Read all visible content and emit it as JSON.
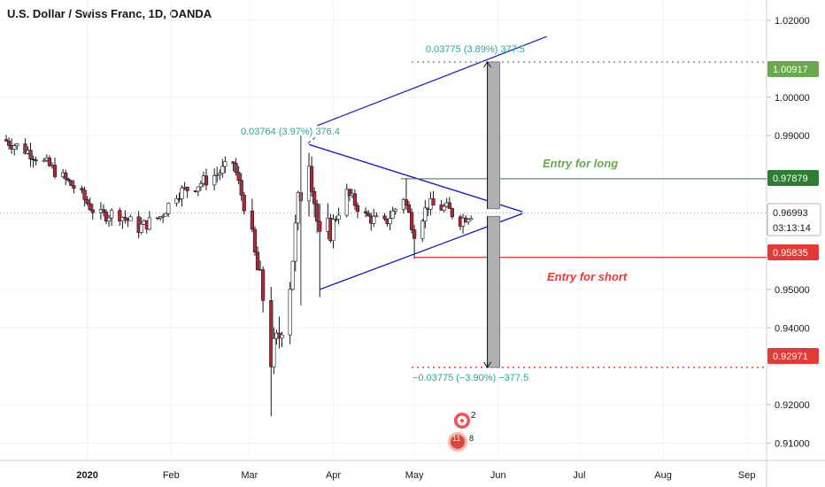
{
  "header": {
    "symbol": "U.S. Dollar / Swiss Franc, 1D, OANDA"
  },
  "colors": {
    "up": "#26a69a",
    "down": "#ef5350",
    "candle": "#131722",
    "bull_body": "#ffffff",
    "bear_body": "#b22833",
    "trendline": "#1c1cd8",
    "long_level": "#2e7d32",
    "short_level": "#e53935",
    "target_long": "#6aa84f",
    "measure_text": "#26a69a",
    "range_box": "#b0b0b0"
  },
  "chart_data": {
    "type": "candlestick",
    "x": [
      "2019-12-01",
      "2020-09-07"
    ],
    "x_ticks": [
      {
        "date": "2020-01-01",
        "label": "2020",
        "bold": true
      },
      {
        "date": "2020-02-01",
        "label": "Feb"
      },
      {
        "date": "2020-03-01",
        "label": "Mar"
      },
      {
        "date": "2020-04-01",
        "label": "Apr"
      },
      {
        "date": "2020-05-01",
        "label": "May"
      },
      {
        "date": "2020-06-01",
        "label": "Jun"
      },
      {
        "date": "2020-07-01",
        "label": "Jul"
      },
      {
        "date": "2020-08-01",
        "label": "Aug"
      },
      {
        "date": "2020-09-01",
        "label": "Sep"
      }
    ],
    "y_ticks": [
      "1.02000",
      "1.00000",
      "0.99000",
      "0.95000",
      "0.94000",
      "0.92000",
      "0.91000"
    ],
    "y_range": [
      0.9055,
      1.0253
    ],
    "path": [
      [
        "2019-12-01",
        0.989
      ],
      [
        "2019-12-10",
        0.986
      ],
      [
        "2019-12-18",
        0.982
      ],
      [
        "2019-12-28",
        0.976
      ],
      [
        "2020-01-05",
        0.969
      ],
      [
        "2020-01-12",
        0.97
      ],
      [
        "2020-01-20",
        0.966
      ],
      [
        "2020-01-28",
        0.969
      ],
      [
        "2020-02-03",
        0.975
      ],
      [
        "2020-02-10",
        0.977
      ],
      [
        "2020-02-18",
        0.98
      ],
      [
        "2020-02-24",
        0.983
      ],
      [
        "2020-02-28",
        0.972
      ],
      [
        "2020-03-06",
        0.948
      ],
      [
        "2020-03-09",
        0.932
      ],
      [
        "2020-03-12",
        0.938
      ],
      [
        "2020-03-16",
        0.952
      ],
      [
        "2020-03-19",
        0.972
      ],
      [
        "2020-03-23",
        0.985
      ],
      [
        "2020-03-27",
        0.962
      ],
      [
        "2020-03-31",
        0.966
      ],
      [
        "2020-04-06",
        0.975
      ],
      [
        "2020-04-13",
        0.969
      ],
      [
        "2020-04-20",
        0.967
      ],
      [
        "2020-04-27",
        0.974
      ],
      [
        "2020-05-01",
        0.965
      ],
      [
        "2020-05-06",
        0.972
      ],
      [
        "2020-05-13",
        0.971
      ],
      [
        "2020-05-18",
        0.968
      ],
      [
        "2020-05-22",
        0.9699
      ]
    ],
    "highs_lows": [
      [
        "2020-03-09",
        0.917,
        "low"
      ],
      [
        "2020-03-20",
        0.99,
        "high"
      ],
      [
        "2020-03-27",
        0.948,
        "low"
      ],
      [
        "2020-04-28",
        0.979,
        "high"
      ],
      [
        "2020-05-01",
        0.958,
        "low"
      ]
    ],
    "current_price": 0.96993,
    "countdown": "03:13:14",
    "levels": [
      {
        "name": "long_target",
        "value": 1.00917,
        "label": "1.00917"
      },
      {
        "name": "entry_long",
        "value": 0.97879,
        "label": "0.97879"
      },
      {
        "name": "entry_short",
        "value": 0.95835,
        "label": "0.95835"
      },
      {
        "name": "short_target",
        "value": 0.92971,
        "label": "0.92971"
      }
    ],
    "annotations": {
      "pole_measure": "0.03764 (3.97%) 376.4",
      "long_measure": "0.03775 (3.89%) 377.5",
      "short_measure": "−0.03775 (−3.90%) −377.5",
      "entry_long": "Entry for long",
      "entry_short": "Entry for short"
    },
    "events": {
      "flag_count": "2",
      "count_a": "11",
      "count_b": "8"
    }
  }
}
